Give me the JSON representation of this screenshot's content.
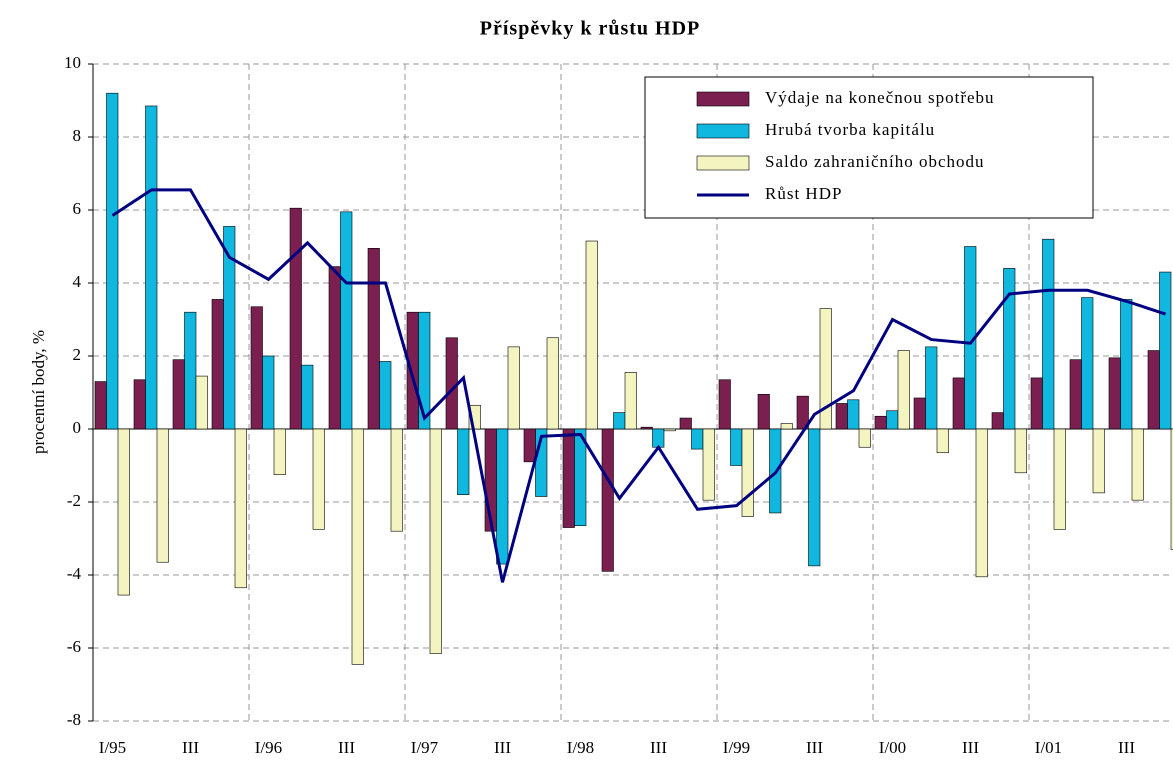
{
  "chart_data": {
    "type": "bar_line",
    "title": "Příspěvky k růstu HDP",
    "y_label": "procentní body, %",
    "categories": [
      "I/95",
      null,
      "III",
      null,
      "I/96",
      null,
      "III",
      null,
      "I/97",
      null,
      "III",
      null,
      "I/98",
      null,
      "III",
      null,
      "I/99",
      null,
      "III",
      null,
      "I/00",
      null,
      "III",
      null,
      "I/01",
      null,
      "III",
      null
    ],
    "series": [
      {
        "name": "Výdaje na konečnou spotřebu",
        "type": "bar",
        "color": "#7a1f4f",
        "values": [
          1.3,
          1.35,
          1.9,
          3.55,
          3.35,
          6.05,
          4.45,
          4.95,
          3.2,
          2.5,
          -2.8,
          -0.9,
          -2.7,
          -3.9,
          0.05,
          0.3,
          1.35,
          0.95,
          0.9,
          0.7,
          0.35,
          0.85,
          1.4,
          0.45,
          1.4,
          1.9,
          1.95,
          2.15
        ]
      },
      {
        "name": "Hrubá tvorba kapitálu",
        "type": "bar",
        "color": "#10b8e0",
        "values": [
          9.2,
          8.85,
          3.2,
          5.55,
          2.0,
          1.75,
          5.95,
          1.85,
          3.2,
          -1.8,
          -3.7,
          -1.85,
          -2.65,
          0.45,
          -0.5,
          -0.55,
          -1.0,
          -2.3,
          -3.75,
          0.8,
          0.5,
          2.25,
          5.0,
          4.4,
          5.2,
          3.6,
          3.55,
          4.3
        ]
      },
      {
        "name": "Saldo zahraničního obchodu",
        "type": "bar",
        "color": "#f4f4c0",
        "values": [
          -4.55,
          -3.65,
          1.45,
          -4.35,
          -1.25,
          -2.75,
          -6.45,
          -2.8,
          -6.15,
          0.65,
          2.25,
          2.5,
          5.15,
          1.55,
          -0.05,
          -1.95,
          -2.4,
          0.15,
          3.3,
          -0.5,
          2.15,
          -0.65,
          -4.05,
          -1.2,
          -2.75,
          -1.75,
          -1.95,
          -3.3
        ]
      },
      {
        "name": "Růst HDP",
        "type": "line",
        "color": "#000080",
        "values": [
          5.85,
          6.55,
          6.55,
          4.7,
          4.1,
          5.1,
          4.0,
          4.0,
          0.3,
          1.4,
          -4.2,
          -0.2,
          -0.15,
          -1.9,
          -0.5,
          -2.2,
          -2.1,
          -1.2,
          0.4,
          1.05,
          3.0,
          2.45,
          2.35,
          3.7,
          3.8,
          3.8,
          3.5,
          3.15
        ]
      }
    ],
    "ylim": [
      -8,
      10
    ],
    "yticks": [
      -8,
      -6,
      -4,
      -2,
      0,
      2,
      4,
      6,
      8,
      10
    ],
    "grid": true,
    "legend": "upper right"
  }
}
